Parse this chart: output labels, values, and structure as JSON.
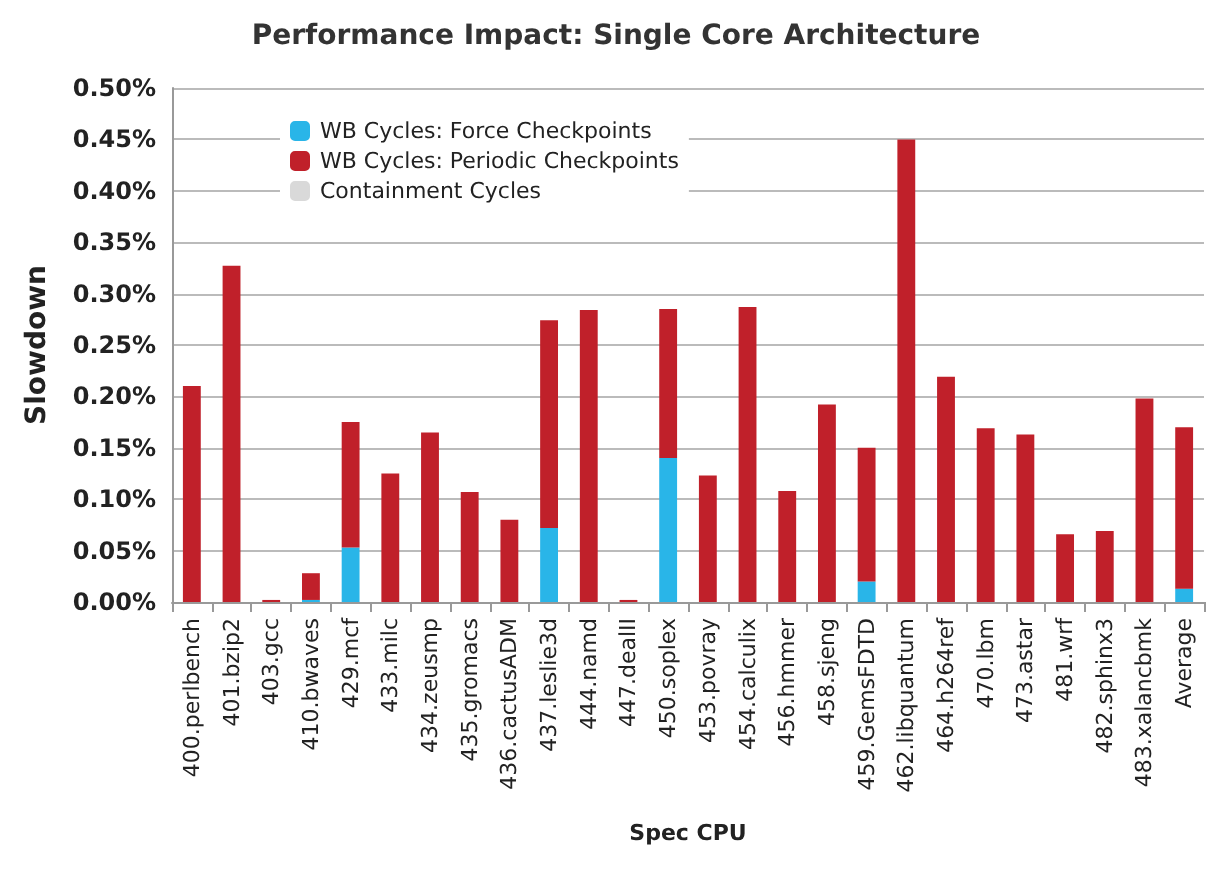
{
  "chart_data": {
    "type": "bar",
    "title": "Performance Impact: Single Core Architecture",
    "xlabel": "Spec CPU",
    "ylabel": "Slowdown",
    "categories": [
      "400.perlbench",
      "401.bzip2",
      "403.gcc",
      "410.bwaves",
      "429.mcf",
      "433.milc",
      "434.zeusmp",
      "435.gromacs",
      "436.cactusADM",
      "437.leslie3d",
      "444.namd",
      "447.dealII",
      "450.soplex",
      "453.povray",
      "454.calculix",
      "456.hmmer",
      "458.sjeng",
      "459.GemsFDTD",
      "462.libquantum",
      "464.h264ref",
      "470.lbm",
      "473.astar",
      "481.wrf",
      "482.sphinx3",
      "483.xalancbmk",
      "Average"
    ],
    "stacked": true,
    "series": [
      {
        "name": "WB Cycles: Force Checkpoints",
        "color": "#29b5e8",
        "values": [
          0,
          0,
          0,
          0.002,
          0.053,
          0,
          0,
          0,
          0,
          0.072,
          0,
          0,
          0.14,
          0,
          0,
          0,
          0,
          0.02,
          0,
          0,
          0,
          0,
          0,
          0,
          0,
          0.013
        ]
      },
      {
        "name": "WB Cycles: Periodic Checkpoints",
        "color": "#c0202a",
        "values": [
          0.21,
          0.327,
          0.002,
          0.026,
          0.122,
          0.125,
          0.165,
          0.107,
          0.08,
          0.202,
          0.284,
          0.002,
          0.145,
          0.123,
          0.287,
          0.108,
          0.192,
          0.13,
          0.45,
          0.219,
          0.169,
          0.163,
          0.066,
          0.069,
          0.198,
          0.157
        ]
      },
      {
        "name": "Containment Cycles",
        "color": "#d9d9d9",
        "values": [
          0,
          0,
          0,
          0,
          0,
          0,
          0,
          0,
          0,
          0,
          0,
          0,
          0,
          0,
          0,
          0,
          0,
          0,
          0,
          0,
          0,
          0,
          0,
          0,
          0,
          0
        ]
      }
    ],
    "ylim": [
      0,
      0.5
    ],
    "yticks": [
      {
        "value": 0,
        "label": "0.00%"
      },
      {
        "value": 0.05,
        "label": "0.05%"
      },
      {
        "value": 0.1,
        "label": "0.10%"
      },
      {
        "value": 0.15,
        "label": "0.15%"
      },
      {
        "value": 0.2,
        "label": "0.20%"
      },
      {
        "value": 0.25,
        "label": "0.25%"
      },
      {
        "value": 0.3,
        "label": "0.30%"
      },
      {
        "value": 0.35,
        "label": "0.35%"
      },
      {
        "value": 0.4,
        "label": "0.40%"
      },
      {
        "value": 0.45,
        "label": "0.45%"
      },
      {
        "value": 0.5,
        "label": "0.50%"
      }
    ],
    "grid": "y",
    "legend": "top left"
  }
}
